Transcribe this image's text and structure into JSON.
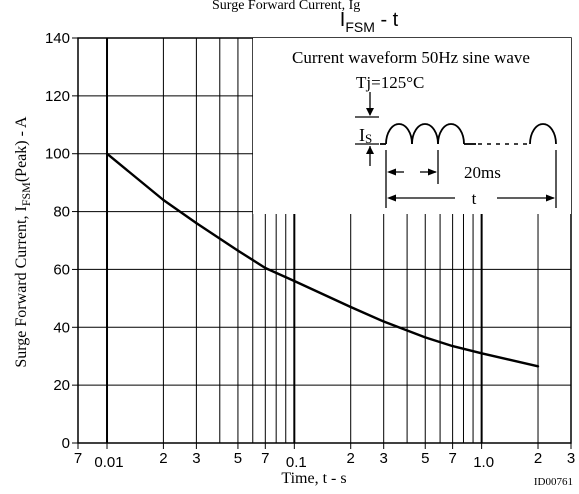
{
  "top_fragment": "Surge Forward Current, Ig",
  "title": {
    "main": "I",
    "sub": "FSM",
    "rest": " - t"
  },
  "chart_data": {
    "type": "line",
    "title": "IFSM - t",
    "x_scale": "log",
    "xlim": [
      0.007,
      3
    ],
    "ylim": [
      0,
      140
    ],
    "grid": true,
    "xlabel": "Time, t  - s",
    "ylabel": {
      "prefix": "Surge Forward Current, I",
      "sub": "FSM",
      "suffix": "(Peak)  - A"
    },
    "x_ticks": [
      {
        "v": 0.007,
        "label": "7"
      },
      {
        "v": 0.01,
        "label": "0.01"
      },
      {
        "v": 0.02,
        "label": "2"
      },
      {
        "v": 0.03,
        "label": "3"
      },
      {
        "v": 0.05,
        "label": "5"
      },
      {
        "v": 0.07,
        "label": "7"
      },
      {
        "v": 0.1,
        "label": "0.1"
      },
      {
        "v": 0.2,
        "label": "2"
      },
      {
        "v": 0.3,
        "label": "3"
      },
      {
        "v": 0.5,
        "label": "5"
      },
      {
        "v": 0.7,
        "label": "7"
      },
      {
        "v": 1,
        "label": "1.0"
      },
      {
        "v": 2,
        "label": "2"
      },
      {
        "v": 3,
        "label": "3"
      }
    ],
    "x_minor_grid": [
      0.04,
      0.06,
      0.08,
      0.09,
      0.4,
      0.6,
      0.8,
      0.9
    ],
    "y_ticks": [
      0,
      20,
      40,
      60,
      80,
      100,
      120,
      140
    ],
    "series": [
      {
        "x": [
          0.01,
          0.02,
          0.03,
          0.05,
          0.07,
          0.1,
          0.2,
          0.3,
          0.5,
          0.7,
          1,
          2
        ],
        "values": [
          100,
          84,
          76,
          66.5,
          60.5,
          56,
          47,
          42,
          36.5,
          33.5,
          31,
          26.5
        ]
      }
    ]
  },
  "inset": {
    "line1": "Current waveform 50Hz sine wave",
    "line2": "Tj=125°C",
    "is_main": "I",
    "is_sub": "S",
    "period_label": "20ms",
    "duration_label": "t"
  },
  "doc_id": "ID00761"
}
